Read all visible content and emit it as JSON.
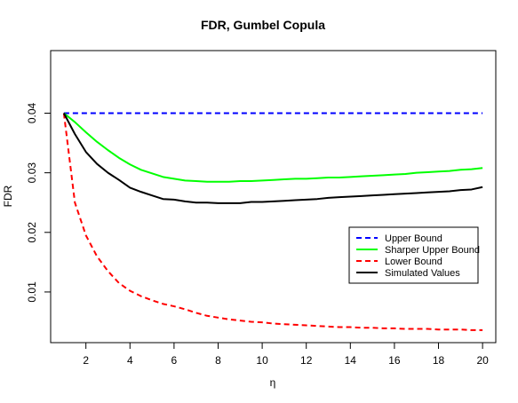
{
  "chart_data": {
    "type": "line",
    "title": "FDR, Gumbel Copula",
    "xlabel": "η",
    "ylabel": "FDR",
    "xlim": [
      0.4,
      20.6
    ],
    "ylim": [
      0.0015,
      0.0505
    ],
    "xticks": [
      2,
      4,
      6,
      8,
      10,
      12,
      14,
      16,
      18,
      20
    ],
    "yticks": [
      0.01,
      0.02,
      0.03,
      0.04
    ],
    "ytick_labels": [
      "0.01",
      "0.02",
      "0.03",
      "0.04"
    ],
    "grid": false,
    "legend_position": "right",
    "x": [
      1,
      1.5,
      2,
      2.5,
      3,
      3.5,
      4,
      4.5,
      5,
      5.5,
      6,
      6.5,
      7,
      7.5,
      8,
      8.5,
      9,
      9.5,
      10,
      10.5,
      11,
      11.5,
      12,
      12.5,
      13,
      13.5,
      14,
      14.5,
      15,
      15.5,
      16,
      16.5,
      17,
      17.5,
      18,
      18.5,
      19,
      19.5,
      20
    ],
    "series": [
      {
        "name": "Upper Bound",
        "color": "#0000ff",
        "style": "dashed",
        "values": [
          0.04,
          0.04,
          0.04,
          0.04,
          0.04,
          0.04,
          0.04,
          0.04,
          0.04,
          0.04,
          0.04,
          0.04,
          0.04,
          0.04,
          0.04,
          0.04,
          0.04,
          0.04,
          0.04,
          0.04,
          0.04,
          0.04,
          0.04,
          0.04,
          0.04,
          0.04,
          0.04,
          0.04,
          0.04,
          0.04,
          0.04,
          0.04,
          0.04,
          0.04,
          0.04,
          0.04,
          0.04,
          0.04,
          0.04
        ]
      },
      {
        "name": "Sharper Upper Bound",
        "color": "#00ff00",
        "style": "solid",
        "values": [
          0.04,
          0.0385,
          0.0368,
          0.0352,
          0.0338,
          0.0325,
          0.0314,
          0.0305,
          0.0299,
          0.0293,
          0.029,
          0.0287,
          0.0286,
          0.0285,
          0.0285,
          0.0285,
          0.0286,
          0.0286,
          0.0287,
          0.0288,
          0.0289,
          0.029,
          0.029,
          0.0291,
          0.0292,
          0.0292,
          0.0293,
          0.0294,
          0.0295,
          0.0296,
          0.0297,
          0.0298,
          0.03,
          0.0301,
          0.0302,
          0.0303,
          0.0305,
          0.0306,
          0.0308
        ]
      },
      {
        "name": "Lower Bound",
        "color": "#ff0000",
        "style": "dashed",
        "values": [
          0.04,
          0.025,
          0.0195,
          0.016,
          0.0135,
          0.0115,
          0.0102,
          0.0093,
          0.0086,
          0.008,
          0.0076,
          0.0071,
          0.0065,
          0.006,
          0.0057,
          0.0054,
          0.0052,
          0.005,
          0.0049,
          0.0047,
          0.0046,
          0.0045,
          0.0044,
          0.0043,
          0.0042,
          0.0041,
          0.0041,
          0.004,
          0.004,
          0.0039,
          0.0039,
          0.0038,
          0.0038,
          0.0038,
          0.0037,
          0.0037,
          0.0037,
          0.0036,
          0.0036
        ]
      },
      {
        "name": "Simulated Values",
        "color": "#000000",
        "style": "solid",
        "values": [
          0.04,
          0.0365,
          0.0335,
          0.0315,
          0.03,
          0.0288,
          0.0275,
          0.0268,
          0.0262,
          0.0256,
          0.0255,
          0.0252,
          0.025,
          0.025,
          0.0249,
          0.0249,
          0.0249,
          0.0251,
          0.0251,
          0.0252,
          0.0253,
          0.0254,
          0.0255,
          0.0256,
          0.0258,
          0.0259,
          0.026,
          0.0261,
          0.0262,
          0.0263,
          0.0264,
          0.0265,
          0.0266,
          0.0267,
          0.0268,
          0.0269,
          0.0271,
          0.0272,
          0.0276
        ]
      }
    ]
  }
}
